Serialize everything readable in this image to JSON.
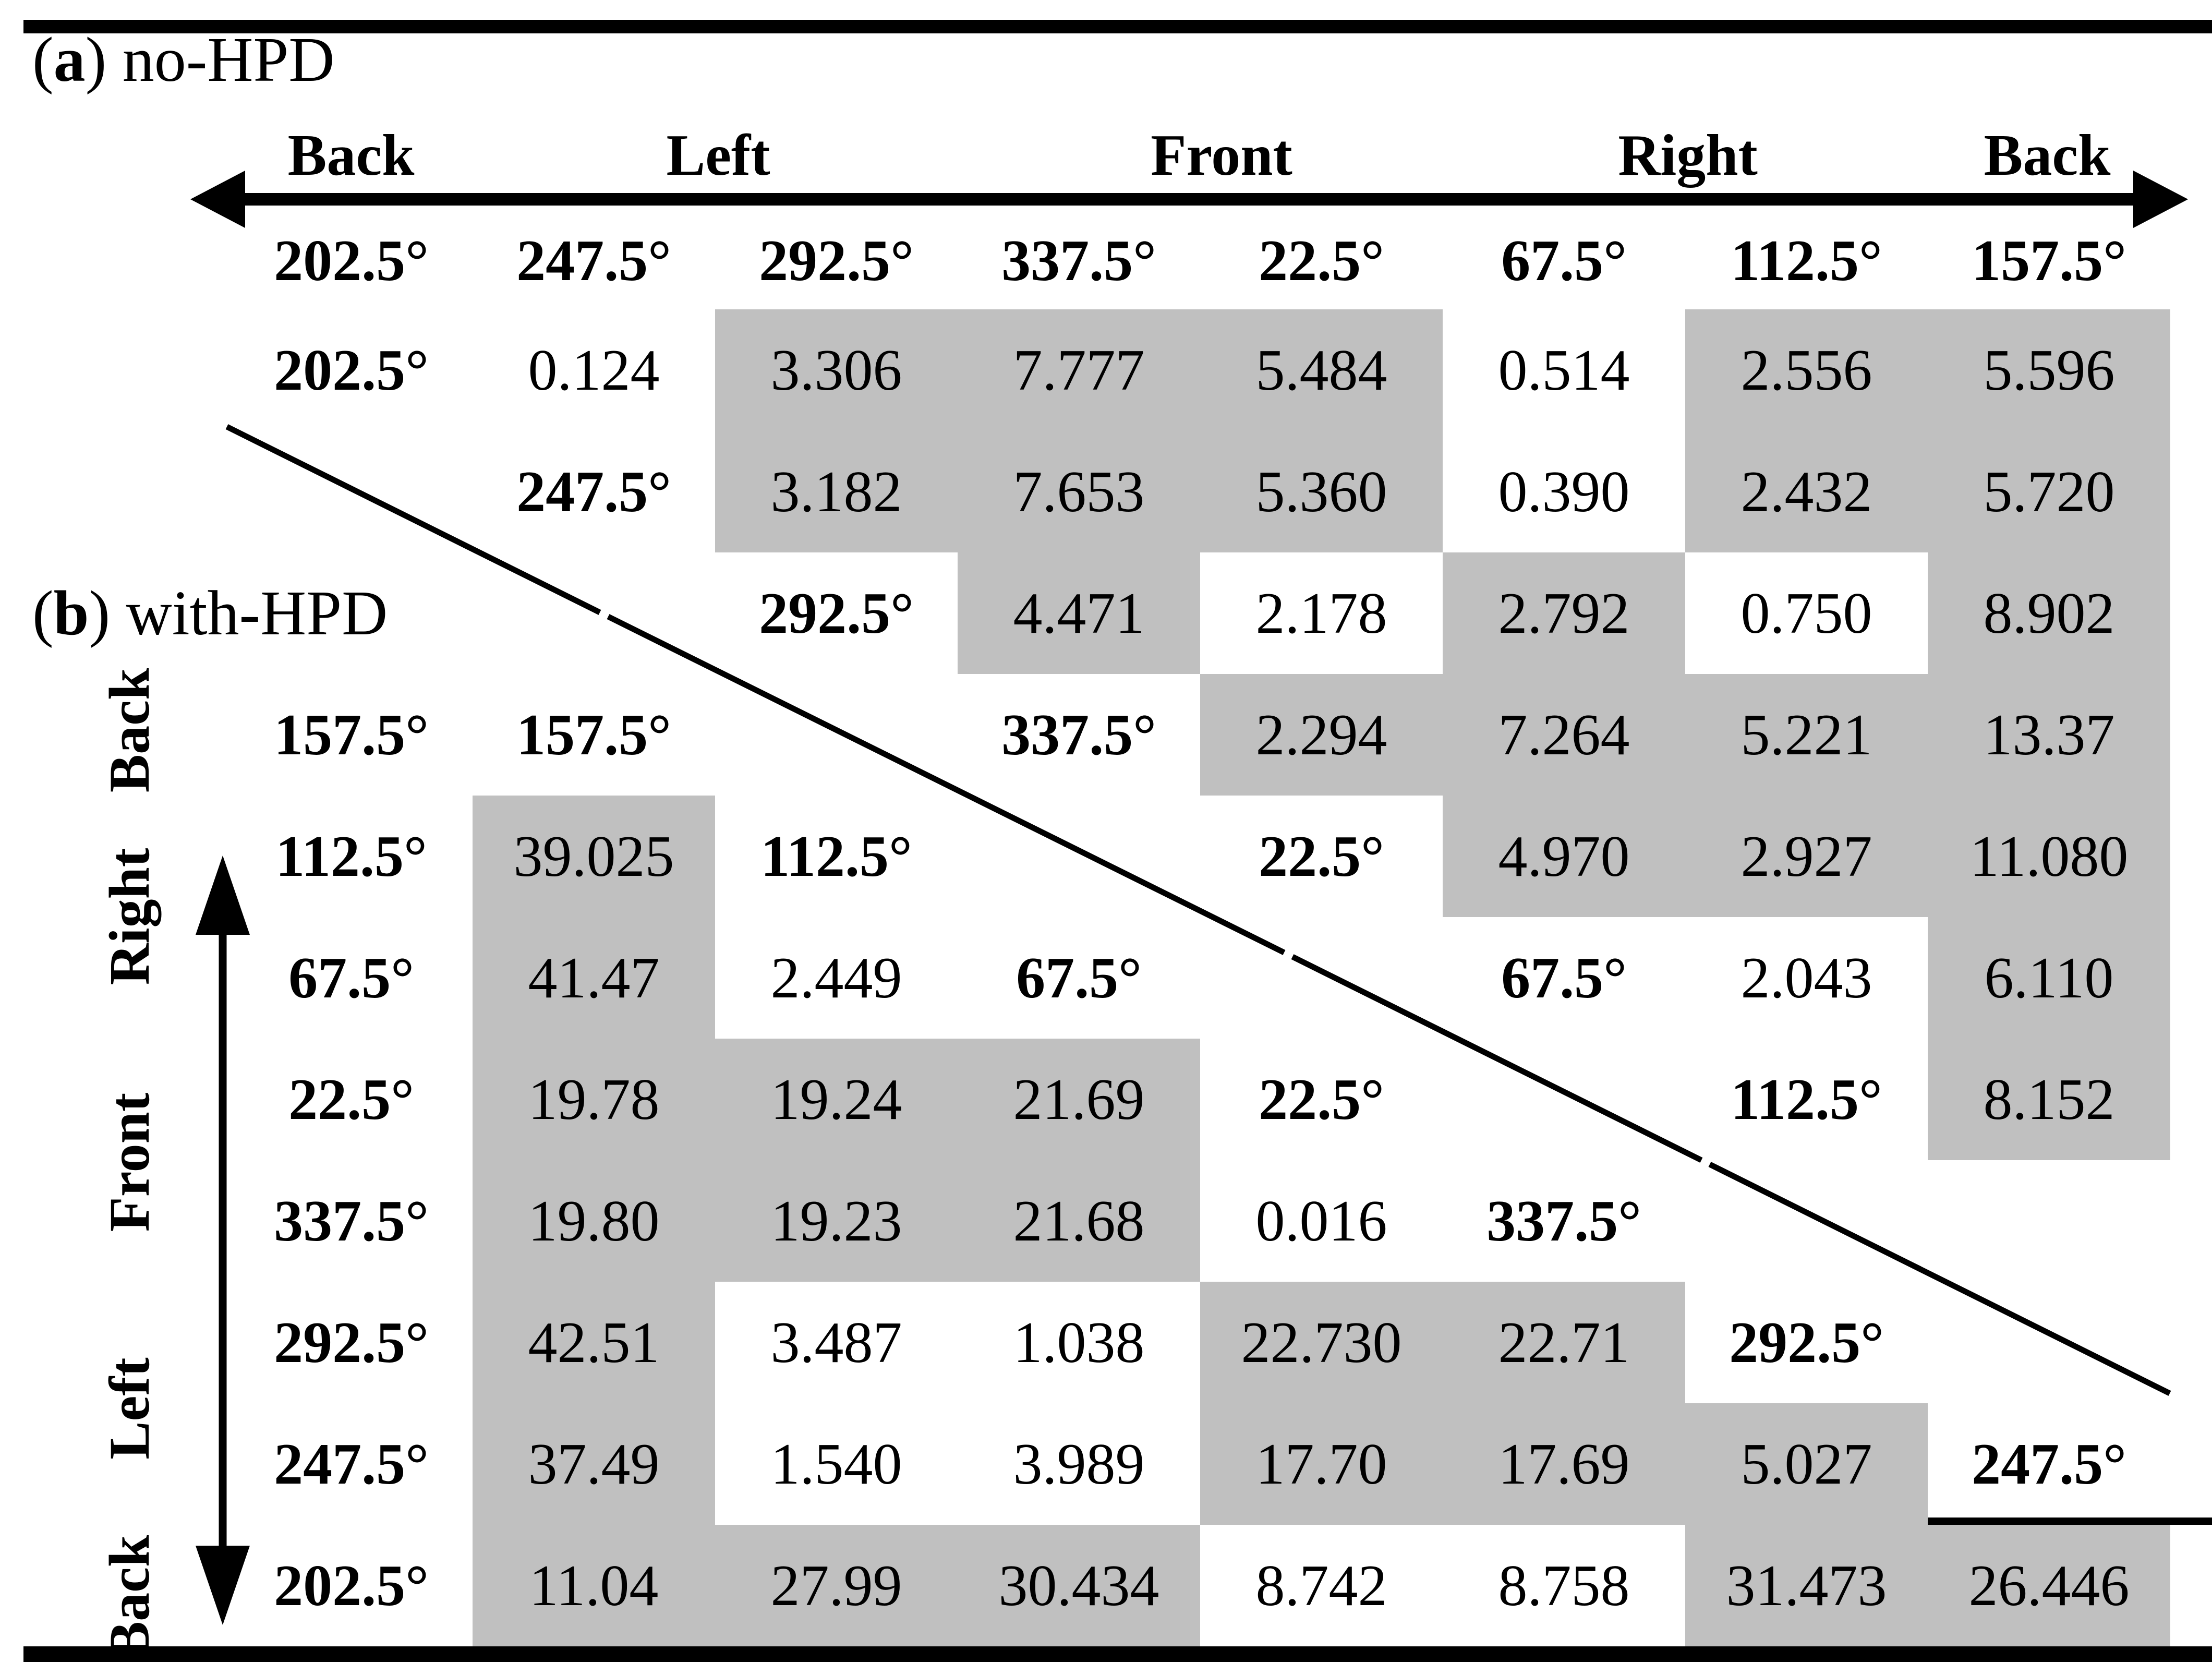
{
  "panel_a": {
    "open": "(",
    "letter": "a",
    "rest": ") no-HPD"
  },
  "panel_b": {
    "open": "(",
    "letter": "b",
    "rest": ") with-HPD"
  },
  "top_axis": {
    "labels": [
      "Back",
      "Left",
      "Front",
      "Right",
      "Back"
    ]
  },
  "left_axis": {
    "labels": [
      "Back",
      "Right",
      "Front",
      "Left",
      "Back"
    ]
  },
  "column_headers": [
    "202.5°",
    "247.5°",
    "292.5°",
    "337.5°",
    "22.5°",
    "67.5°",
    "112.5°",
    "157.5°"
  ],
  "colors": {
    "cell_shade": "#c0c0c0",
    "ink": "#000000",
    "background": "#ffffff"
  },
  "grid": {
    "rows": [
      {
        "cells": [
          {
            "c": 0,
            "t": "202.5°",
            "b": true,
            "g": false
          },
          {
            "c": 1,
            "t": "0.124",
            "b": false,
            "g": false
          },
          {
            "c": 2,
            "t": "3.306",
            "b": false,
            "g": true
          },
          {
            "c": 3,
            "t": "7.777",
            "b": false,
            "g": true
          },
          {
            "c": 4,
            "t": "5.484",
            "b": false,
            "g": true
          },
          {
            "c": 5,
            "t": "0.514",
            "b": false,
            "g": false
          },
          {
            "c": 6,
            "t": "2.556",
            "b": false,
            "g": true
          },
          {
            "c": 7,
            "t": "5.596",
            "b": false,
            "g": true
          }
        ]
      },
      {
        "cells": [
          {
            "c": 1,
            "t": "247.5°",
            "b": true,
            "g": false
          },
          {
            "c": 2,
            "t": "3.182",
            "b": false,
            "g": true
          },
          {
            "c": 3,
            "t": "7.653",
            "b": false,
            "g": true
          },
          {
            "c": 4,
            "t": "5.360",
            "b": false,
            "g": true
          },
          {
            "c": 5,
            "t": "0.390",
            "b": false,
            "g": false
          },
          {
            "c": 6,
            "t": "2.432",
            "b": false,
            "g": true
          },
          {
            "c": 7,
            "t": "5.720",
            "b": false,
            "g": true
          }
        ]
      },
      {
        "cells": [
          {
            "c": 2,
            "t": "292.5°",
            "b": true,
            "g": false
          },
          {
            "c": 3,
            "t": "4.471",
            "b": false,
            "g": true
          },
          {
            "c": 4,
            "t": "2.178",
            "b": false,
            "g": false
          },
          {
            "c": 5,
            "t": "2.792",
            "b": false,
            "g": true
          },
          {
            "c": 6,
            "t": "0.750",
            "b": false,
            "g": false
          },
          {
            "c": 7,
            "t": "8.902",
            "b": false,
            "g": true
          }
        ]
      },
      {
        "cells": [
          {
            "c": 0,
            "t": "157.5°",
            "b": true,
            "g": false
          },
          {
            "c": 1,
            "t": "157.5°",
            "b": true,
            "g": false
          },
          {
            "c": 3,
            "t": "337.5°",
            "b": true,
            "g": false
          },
          {
            "c": 4,
            "t": "2.294",
            "b": false,
            "g": true
          },
          {
            "c": 5,
            "t": "7.264",
            "b": false,
            "g": true
          },
          {
            "c": 6,
            "t": "5.221",
            "b": false,
            "g": true
          },
          {
            "c": 7,
            "t": "13.37",
            "b": false,
            "g": true
          }
        ]
      },
      {
        "cells": [
          {
            "c": 0,
            "t": "112.5°",
            "b": true,
            "g": false
          },
          {
            "c": 1,
            "t": "39.025",
            "b": false,
            "g": true
          },
          {
            "c": 2,
            "t": "112.5°",
            "b": true,
            "g": false
          },
          {
            "c": 4,
            "t": "22.5°",
            "b": true,
            "g": false
          },
          {
            "c": 5,
            "t": "4.970",
            "b": false,
            "g": true
          },
          {
            "c": 6,
            "t": "2.927",
            "b": false,
            "g": true
          },
          {
            "c": 7,
            "t": "11.080",
            "b": false,
            "g": true
          }
        ]
      },
      {
        "cells": [
          {
            "c": 0,
            "t": "67.5°",
            "b": true,
            "g": false
          },
          {
            "c": 1,
            "t": "41.47",
            "b": false,
            "g": true
          },
          {
            "c": 2,
            "t": "2.449",
            "b": false,
            "g": false
          },
          {
            "c": 3,
            "t": "67.5°",
            "b": true,
            "g": false
          },
          {
            "c": 5,
            "t": "67.5°",
            "b": true,
            "g": false
          },
          {
            "c": 6,
            "t": "2.043",
            "b": false,
            "g": false
          },
          {
            "c": 7,
            "t": "6.110",
            "b": false,
            "g": true
          }
        ]
      },
      {
        "cells": [
          {
            "c": 0,
            "t": "22.5°",
            "b": true,
            "g": false
          },
          {
            "c": 1,
            "t": "19.78",
            "b": false,
            "g": true
          },
          {
            "c": 2,
            "t": "19.24",
            "b": false,
            "g": true
          },
          {
            "c": 3,
            "t": "21.69",
            "b": false,
            "g": true
          },
          {
            "c": 4,
            "t": "22.5°",
            "b": true,
            "g": false
          },
          {
            "c": 6,
            "t": "112.5°",
            "b": true,
            "g": false
          },
          {
            "c": 7,
            "t": "8.152",
            "b": false,
            "g": true
          }
        ]
      },
      {
        "cells": [
          {
            "c": 0,
            "t": "337.5°",
            "b": true,
            "g": false
          },
          {
            "c": 1,
            "t": "19.80",
            "b": false,
            "g": true
          },
          {
            "c": 2,
            "t": "19.23",
            "b": false,
            "g": true
          },
          {
            "c": 3,
            "t": "21.68",
            "b": false,
            "g": true
          },
          {
            "c": 4,
            "t": "0.016",
            "b": false,
            "g": false
          },
          {
            "c": 5,
            "t": "337.5°",
            "b": true,
            "g": false
          }
        ]
      },
      {
        "cells": [
          {
            "c": 0,
            "t": "292.5°",
            "b": true,
            "g": false
          },
          {
            "c": 1,
            "t": "42.51",
            "b": false,
            "g": true
          },
          {
            "c": 2,
            "t": "3.487",
            "b": false,
            "g": false
          },
          {
            "c": 3,
            "t": "1.038",
            "b": false,
            "g": false
          },
          {
            "c": 4,
            "t": "22.730",
            "b": false,
            "g": true
          },
          {
            "c": 5,
            "t": "22.71",
            "b": false,
            "g": true
          },
          {
            "c": 6,
            "t": "292.5°",
            "b": true,
            "g": false
          }
        ]
      },
      {
        "cells": [
          {
            "c": 0,
            "t": "247.5°",
            "b": true,
            "g": false
          },
          {
            "c": 1,
            "t": "37.49",
            "b": false,
            "g": true
          },
          {
            "c": 2,
            "t": "1.540",
            "b": false,
            "g": false
          },
          {
            "c": 3,
            "t": "3.989",
            "b": false,
            "g": false
          },
          {
            "c": 4,
            "t": "17.70",
            "b": false,
            "g": true
          },
          {
            "c": 5,
            "t": "17.69",
            "b": false,
            "g": true
          },
          {
            "c": 6,
            "t": "5.027",
            "b": false,
            "g": true
          },
          {
            "c": 7,
            "t": "247.5°",
            "b": true,
            "g": false
          }
        ]
      },
      {
        "cells": [
          {
            "c": 0,
            "t": "202.5°",
            "b": true,
            "g": false
          },
          {
            "c": 1,
            "t": "11.04",
            "b": false,
            "g": true
          },
          {
            "c": 2,
            "t": "27.99",
            "b": false,
            "g": true
          },
          {
            "c": 3,
            "t": "30.434",
            "b": false,
            "g": true
          },
          {
            "c": 4,
            "t": "8.742",
            "b": false,
            "g": false
          },
          {
            "c": 5,
            "t": "8.758",
            "b": false,
            "g": false
          },
          {
            "c": 6,
            "t": "31.473",
            "b": false,
            "g": true
          },
          {
            "c": 7,
            "t": "26.446",
            "b": false,
            "g": true
          }
        ]
      }
    ]
  }
}
